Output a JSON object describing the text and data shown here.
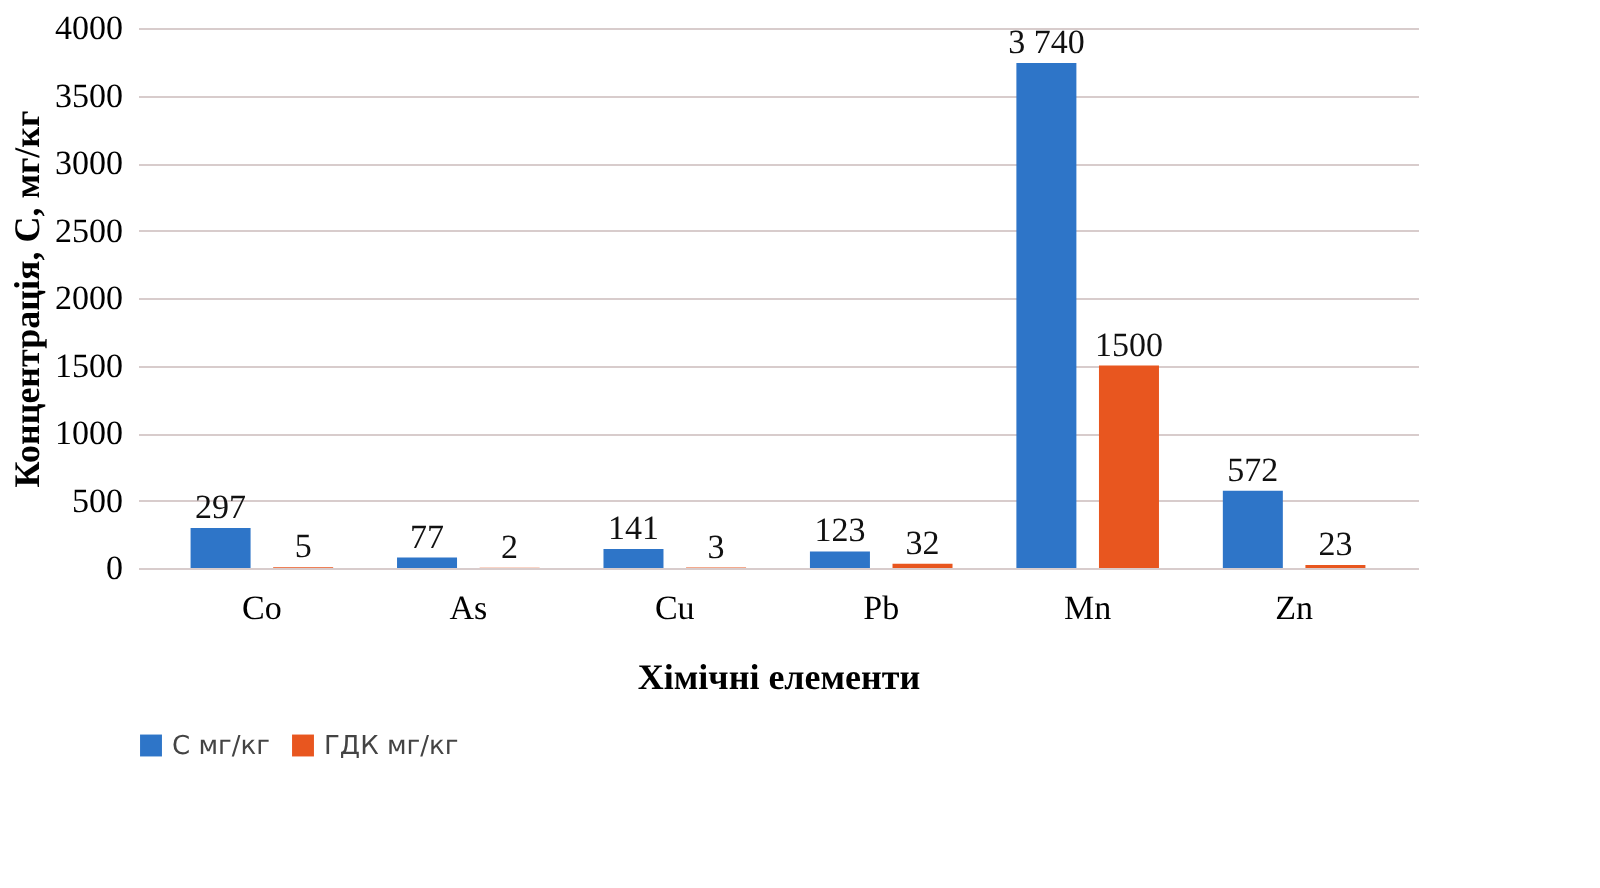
{
  "chart_data": {
    "type": "bar",
    "xlabel": "Хімічні елементи",
    "ylabel": "Концентрація, С, мг/кг",
    "categories": [
      "Co",
      "As",
      "Cu",
      "Pb",
      "Mn",
      "Zn"
    ],
    "series": [
      {
        "name": "С мг/кг",
        "color": "#2e75c8",
        "values": [
          297,
          77,
          141,
          123,
          3740,
          572
        ],
        "value_labels": [
          "297",
          "77",
          "141",
          "123",
          "3 740",
          "572"
        ]
      },
      {
        "name": "ГДК мг/кг",
        "color": "#e8561f",
        "values": [
          5,
          2,
          3,
          32,
          1500,
          23
        ],
        "value_labels": [
          "5",
          "2",
          "3",
          "32",
          "1500",
          "23"
        ]
      }
    ],
    "ylim": [
      0,
      4000
    ],
    "yticks": [
      0,
      500,
      1000,
      1500,
      2000,
      2500,
      3000,
      3500,
      4000
    ],
    "grid": "y",
    "legend": "bottom"
  }
}
